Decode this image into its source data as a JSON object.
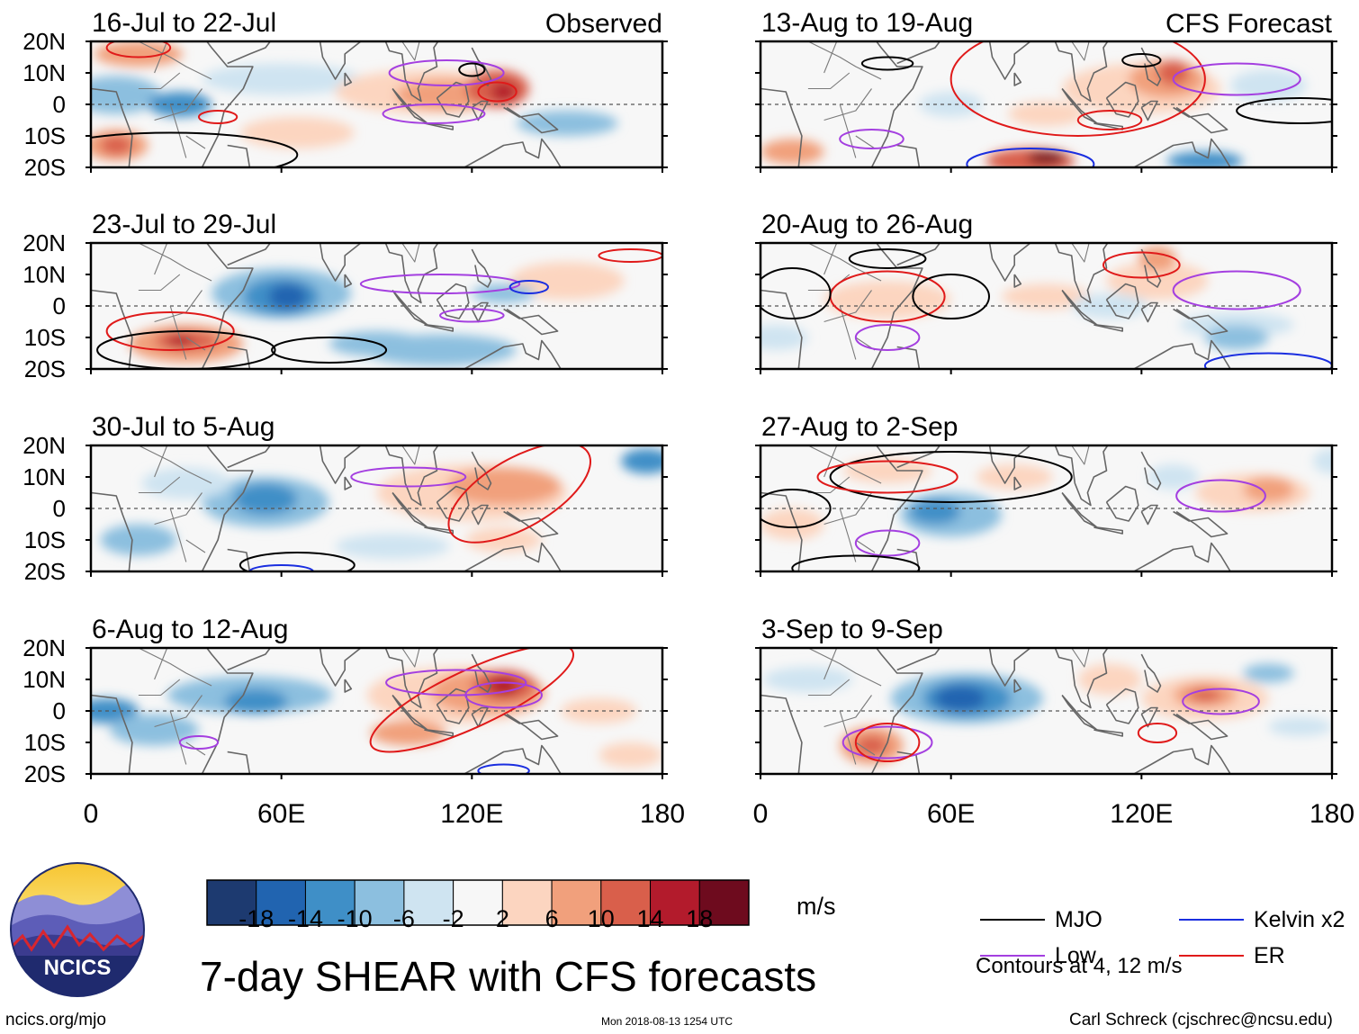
{
  "figure": {
    "title": "7-day SHEAR with CFS forecasts",
    "source_url": "ncics.org/mjo",
    "timestamp": "Mon 2018-08-13 1254 UTC",
    "credit": "Carl Schreck (cjschrec@ncsu.edu)",
    "logo_text": "NCICS"
  },
  "chart_data": {
    "type": "heatmap",
    "variable": "7-day SHEAR anomaly",
    "units": "m/s",
    "x_axis": {
      "ticks": [
        "0",
        "60E",
        "120E",
        "180"
      ],
      "range": [
        0,
        180
      ]
    },
    "y_axis": {
      "ticks": [
        "20N",
        "10N",
        "0",
        "10S",
        "20S"
      ],
      "range": [
        -20,
        20
      ]
    },
    "columns": [
      {
        "label": "Observed",
        "panels": [
          {
            "period": "16-Jul to 22-Jul"
          },
          {
            "period": "23-Jul to 29-Jul"
          },
          {
            "period": "30-Jul to 5-Aug"
          },
          {
            "period": "6-Aug to 12-Aug"
          }
        ]
      },
      {
        "label": "CFS Forecast",
        "panels": [
          {
            "period": "13-Aug to 19-Aug"
          },
          {
            "period": "20-Aug to 26-Aug"
          },
          {
            "period": "27-Aug to 2-Sep"
          },
          {
            "period": "3-Sep to 9-Sep"
          }
        ]
      }
    ],
    "colorbar": {
      "ticks": [
        "-18",
        "-14",
        "-10",
        "-6",
        "-2",
        "2",
        "6",
        "10",
        "14",
        "18"
      ],
      "colors": [
        "#1d3a70",
        "#2164b0",
        "#3f8fc7",
        "#8cbfdf",
        "#cfe4f1",
        "#f7f7f7",
        "#fcd5c0",
        "#f1a07c",
        "#d95f4b",
        "#b31b2c",
        "#6e0b1e"
      ],
      "units_label": "m/s"
    },
    "legend": {
      "items": [
        {
          "label": "MJO",
          "color": "#000000"
        },
        {
          "label": "Kelvin x2",
          "color": "#1a2ee0"
        },
        {
          "label": "Low",
          "color": "#a43fe0"
        },
        {
          "label": "ER",
          "color": "#e01a1a"
        }
      ],
      "note": "Contours at 4, 12 m/s"
    }
  }
}
